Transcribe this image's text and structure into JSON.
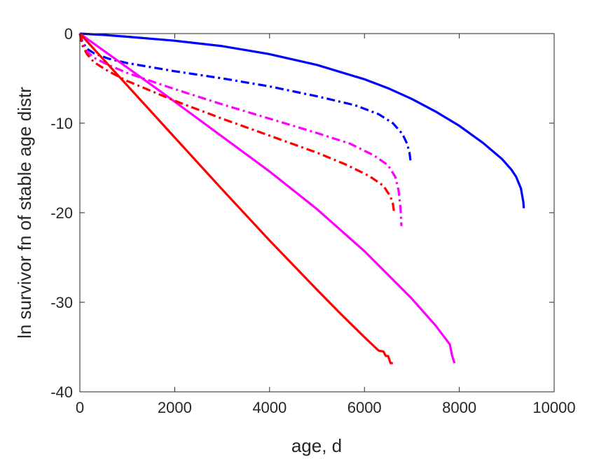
{
  "chart_data": {
    "type": "line",
    "xlabel": "age, d",
    "ylabel": "ln survivor fn of stable age distr",
    "xlim": [
      0,
      10000
    ],
    "ylim": [
      -40,
      0
    ],
    "xticks": [
      0,
      2000,
      4000,
      6000,
      8000,
      10000
    ],
    "yticks": [
      0,
      -10,
      -20,
      -30,
      -40
    ],
    "xtick_labels": [
      "0",
      "2000",
      "4000",
      "6000",
      "8000",
      "10000"
    ],
    "ytick_labels": [
      "0",
      "-10",
      "-20",
      "-30",
      "-40"
    ],
    "grid": false,
    "series": [
      {
        "color": "#0000ff",
        "style": "solid",
        "x": [
          0,
          500,
          1000,
          2000,
          3000,
          4000,
          5000,
          6000,
          6500,
          7000,
          7500,
          8000,
          8500,
          8900,
          9100,
          9200,
          9300,
          9350,
          9360
        ],
        "y": [
          0,
          -0.15,
          -0.35,
          -0.8,
          -1.4,
          -2.3,
          -3.5,
          -5.1,
          -6.1,
          -7.3,
          -8.7,
          -10.3,
          -12.2,
          -14.0,
          -15.2,
          -16.0,
          -17.3,
          -18.8,
          -19.5
        ]
      },
      {
        "color": "#0000ff",
        "style": "dashdot",
        "x": [
          0,
          50,
          150,
          300,
          600,
          1000,
          2000,
          3000,
          4000,
          5000,
          5800,
          6300,
          6600,
          6800,
          6900,
          6950,
          6980
        ],
        "y": [
          0,
          -0.9,
          -1.7,
          -2.2,
          -2.8,
          -3.3,
          -4.2,
          -5.0,
          -5.9,
          -7.0,
          -8.0,
          -9.0,
          -10.0,
          -11.2,
          -12.3,
          -13.3,
          -14.5
        ]
      },
      {
        "color": "#ff00ff",
        "style": "solid",
        "x": [
          0,
          1000,
          2000,
          3000,
          4000,
          5000,
          6000,
          7000,
          7500,
          7800,
          7850,
          7900
        ],
        "y": [
          0,
          -3.8,
          -7.6,
          -11.5,
          -15.4,
          -19.6,
          -24.3,
          -29.6,
          -32.6,
          -34.7,
          -36.0,
          -36.8
        ]
      },
      {
        "color": "#ff00ff",
        "style": "dashdot",
        "x": [
          0,
          50,
          150,
          300,
          600,
          1000,
          2000,
          3000,
          4000,
          5000,
          5700,
          6200,
          6500,
          6650,
          6720,
          6760,
          6780
        ],
        "y": [
          0,
          -1.1,
          -2.0,
          -2.7,
          -3.5,
          -4.4,
          -6.2,
          -7.9,
          -9.5,
          -11.1,
          -12.3,
          -13.6,
          -14.7,
          -16.0,
          -17.5,
          -19.5,
          -21.5
        ]
      },
      {
        "color": "#ff0000",
        "style": "solid",
        "x": [
          0,
          500,
          1000,
          2000,
          3000,
          4000,
          5000,
          5500,
          6000,
          6300,
          6400,
          6450,
          6500,
          6550,
          6600
        ],
        "y": [
          0,
          -2.9,
          -5.8,
          -11.6,
          -17.4,
          -23.1,
          -28.6,
          -31.3,
          -33.9,
          -35.4,
          -35.5,
          -36.0,
          -36.0,
          -36.8,
          -36.8
        ]
      },
      {
        "color": "#ff0000",
        "style": "dashdot",
        "x": [
          0,
          50,
          150,
          300,
          600,
          1000,
          2000,
          3000,
          4000,
          5000,
          5600,
          6100,
          6400,
          6550,
          6600,
          6620
        ],
        "y": [
          0,
          -1.3,
          -2.3,
          -3.2,
          -4.2,
          -5.3,
          -7.5,
          -9.5,
          -11.4,
          -13.3,
          -14.6,
          -15.9,
          -17.0,
          -18.2,
          -19.0,
          -19.8
        ]
      }
    ]
  }
}
